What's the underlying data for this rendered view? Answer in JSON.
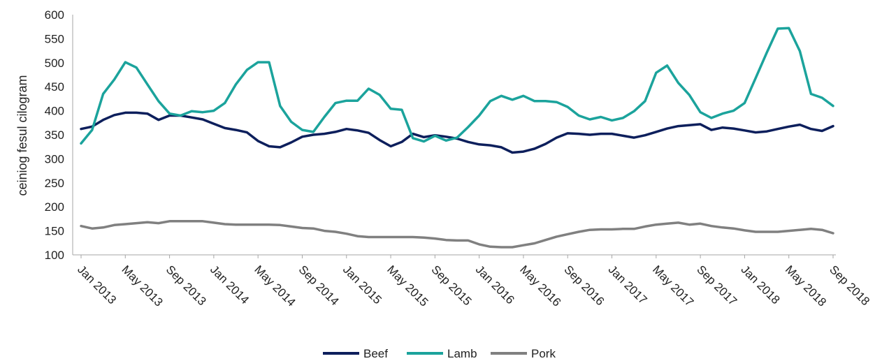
{
  "chart_data": {
    "type": "line",
    "title": "",
    "xlabel": "",
    "ylabel": "ceiniog fesul cilogram",
    "ylim": [
      100,
      600
    ],
    "yticks": [
      100,
      150,
      200,
      250,
      300,
      350,
      400,
      450,
      500,
      550,
      600
    ],
    "grid": false,
    "legend": "bottom",
    "x": [
      "Jan 2013",
      "Feb 2013",
      "Mar 2013",
      "Apr 2013",
      "May 2013",
      "Jun 2013",
      "Jul 2013",
      "Aug 2013",
      "Sep 2013",
      "Oct 2013",
      "Nov 2013",
      "Dec 2013",
      "Jan 2014",
      "Feb 2014",
      "Mar 2014",
      "Apr 2014",
      "May 2014",
      "Jun 2014",
      "Jul 2014",
      "Aug 2014",
      "Sep 2014",
      "Oct 2014",
      "Nov 2014",
      "Dec 2014",
      "Jan 2015",
      "Feb 2015",
      "Mar 2015",
      "Apr 2015",
      "May 2015",
      "Jun 2015",
      "Jul 2015",
      "Aug 2015",
      "Sep 2015",
      "Oct 2015",
      "Nov 2015",
      "Dec 2015",
      "Jan 2016",
      "Feb 2016",
      "Mar 2016",
      "Apr 2016",
      "May 2016",
      "Jun 2016",
      "Jul 2016",
      "Aug 2016",
      "Sep 2016",
      "Oct 2016",
      "Nov 2016",
      "Dec 2016",
      "Jan 2017",
      "Feb 2017",
      "Mar 2017",
      "Apr 2017",
      "May 2017",
      "Jun 2017",
      "Jul 2017",
      "Aug 2017",
      "Sep 2017",
      "Oct 2017",
      "Nov 2017",
      "Dec 2017",
      "Jan 2018",
      "Feb 2018",
      "Mar 2018",
      "Apr 2018",
      "May 2018",
      "Jun 2018",
      "Jul 2018",
      "Aug 2018",
      "Sep 2018"
    ],
    "xtick_labels": [
      "Jan 2013",
      "May 2013",
      "Sep 2013",
      "Jan 2014",
      "May 2014",
      "Sep 2014",
      "Jan 2015",
      "May 2015",
      "Sep 2015",
      "Jan 2016",
      "May 2016",
      "Sep 2016",
      "Jan 2017",
      "May 2017",
      "Sep 2017",
      "Jan 2018",
      "May 2018",
      "Sep 2018"
    ],
    "series": [
      {
        "name": "Beef",
        "color": "#0d1f5c",
        "values": [
          362,
          367,
          381,
          391,
          396,
          396,
          394,
          381,
          390,
          390,
          386,
          382,
          373,
          364,
          360,
          355,
          337,
          326,
          324,
          334,
          346,
          350,
          352,
          356,
          362,
          359,
          354,
          339,
          326,
          335,
          352,
          345,
          349,
          346,
          342,
          335,
          330,
          328,
          324,
          313,
          315,
          321,
          331,
          344,
          353,
          352,
          350,
          352,
          352,
          348,
          344,
          349,
          356,
          363,
          368,
          370,
          372,
          360,
          365,
          363,
          359,
          355,
          357,
          362,
          367,
          371,
          362,
          358,
          368
        ]
      },
      {
        "name": "Lamb",
        "color": "#1ba39c",
        "values": [
          332,
          360,
          435,
          465,
          501,
          490,
          455,
          420,
          394,
          390,
          399,
          397,
          400,
          416,
          455,
          485,
          501,
          501,
          410,
          377,
          360,
          356,
          387,
          416,
          421,
          421,
          446,
          433,
          404,
          402,
          343,
          336,
          348,
          338,
          344,
          366,
          390,
          420,
          431,
          423,
          431,
          420,
          420,
          418,
          408,
          390,
          382,
          387,
          380,
          385,
          399,
          420,
          479,
          494,
          458,
          433,
          397,
          385,
          394,
          400,
          416,
          468,
          521,
          571,
          572,
          524,
          435,
          427,
          410
        ]
      },
      {
        "name": "Pork",
        "color": "#808080",
        "values": [
          160,
          155,
          157,
          162,
          164,
          166,
          168,
          166,
          170,
          170,
          170,
          170,
          167,
          164,
          163,
          163,
          163,
          163,
          162,
          159,
          156,
          155,
          150,
          148,
          144,
          139,
          137,
          137,
          137,
          137,
          137,
          136,
          134,
          131,
          130,
          130,
          122,
          117,
          116,
          116,
          120,
          124,
          131,
          138,
          143,
          148,
          152,
          153,
          153,
          154,
          154,
          159,
          163,
          165,
          167,
          163,
          165,
          160,
          157,
          155,
          151,
          148,
          148,
          148,
          150,
          152,
          154,
          152,
          145
        ]
      }
    ]
  }
}
